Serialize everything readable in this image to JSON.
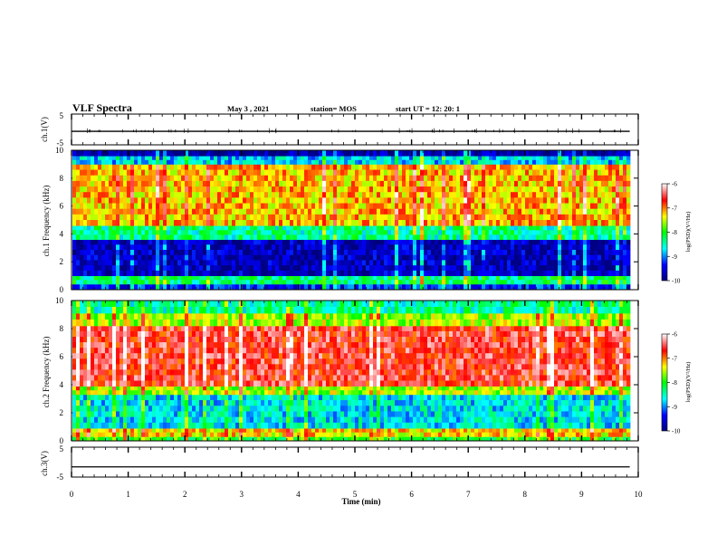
{
  "header": {
    "title": "VLF Spectra",
    "date": "May 3  , 2021",
    "station": "station= MOS",
    "start": "start  UT =   12: 20: 1"
  },
  "chart_data": [
    {
      "type": "line",
      "title": "",
      "ylabel": "ch.1(V)",
      "xlim": [
        0,
        10
      ],
      "ylim": [
        -5,
        5
      ],
      "yticks": [
        "5",
        "-5"
      ],
      "series": [
        {
          "values": [
            [
              0,
              -0.6
            ],
            [
              9.85,
              -0.6
            ]
          ]
        }
      ]
    },
    {
      "type": "heatmap",
      "ylabel": "ch.1  Frequency (kHz)",
      "xlim": [
        0,
        10
      ],
      "ylim": [
        0,
        10
      ],
      "yticks": [
        "0",
        "2",
        "4",
        "6",
        "8",
        "10"
      ],
      "data_extent_min": 9.85,
      "bands_khz": [
        {
          "from": 0.0,
          "to": 0.4,
          "level": -9.3
        },
        {
          "from": 0.4,
          "to": 1.0,
          "level": -8.3
        },
        {
          "from": 1.0,
          "to": 3.6,
          "level": -9.7
        },
        {
          "from": 3.6,
          "to": 4.6,
          "level": -8.4
        },
        {
          "from": 4.6,
          "to": 9.0,
          "level": -7.2
        },
        {
          "from": 9.0,
          "to": 9.6,
          "level": -8.8
        },
        {
          "from": 9.6,
          "to": 10.0,
          "level": -9.8
        }
      ],
      "colorbar": {
        "label": "log(PSD)(V²/Hz)",
        "ticks": [
          "-6",
          "-7",
          "-8",
          "-9",
          "-10"
        ],
        "range": [
          -10,
          -6
        ]
      }
    },
    {
      "type": "heatmap",
      "ylabel": "ch.2  Frequency (kHz)",
      "xlim": [
        0,
        10
      ],
      "ylim": [
        0,
        10
      ],
      "yticks": [
        "0",
        "2",
        "4",
        "6",
        "8",
        "10"
      ],
      "data_extent_min": 9.85,
      "bands_khz": [
        {
          "from": 0.0,
          "to": 0.3,
          "level": -8.0
        },
        {
          "from": 0.3,
          "to": 0.9,
          "level": -7.3
        },
        {
          "from": 0.9,
          "to": 3.3,
          "level": -8.7
        },
        {
          "from": 3.3,
          "to": 3.9,
          "level": -7.6
        },
        {
          "from": 3.9,
          "to": 8.2,
          "level": -6.6
        },
        {
          "from": 8.2,
          "to": 9.1,
          "level": -7.6
        },
        {
          "from": 9.1,
          "to": 10.0,
          "level": -8.4
        }
      ],
      "colorbar": {
        "label": "log(PSD)(V²/Hz)",
        "ticks": [
          "-6",
          "-7",
          "-8",
          "-9",
          "-10"
        ],
        "range": [
          -10,
          -6
        ]
      }
    },
    {
      "type": "line",
      "ylabel": "ch.3(V)",
      "xlabel": "Time  (min)",
      "xlim": [
        0,
        10
      ],
      "ylim": [
        -5,
        5
      ],
      "yticks": [
        "5",
        "-5"
      ],
      "xticks": [
        "0",
        "1",
        "2",
        "3",
        "4",
        "5",
        "6",
        "7",
        "8",
        "9",
        "10"
      ],
      "series": [
        {
          "values": [
            [
              0,
              -1.6
            ],
            [
              9.85,
              -1.6
            ]
          ]
        }
      ]
    }
  ],
  "colors": {
    "axis": "#000000",
    "colormap": [
      "#000080",
      "#0000ff",
      "#00ffff",
      "#00ff00",
      "#ffff00",
      "#ff0000",
      "#ffffff"
    ]
  }
}
